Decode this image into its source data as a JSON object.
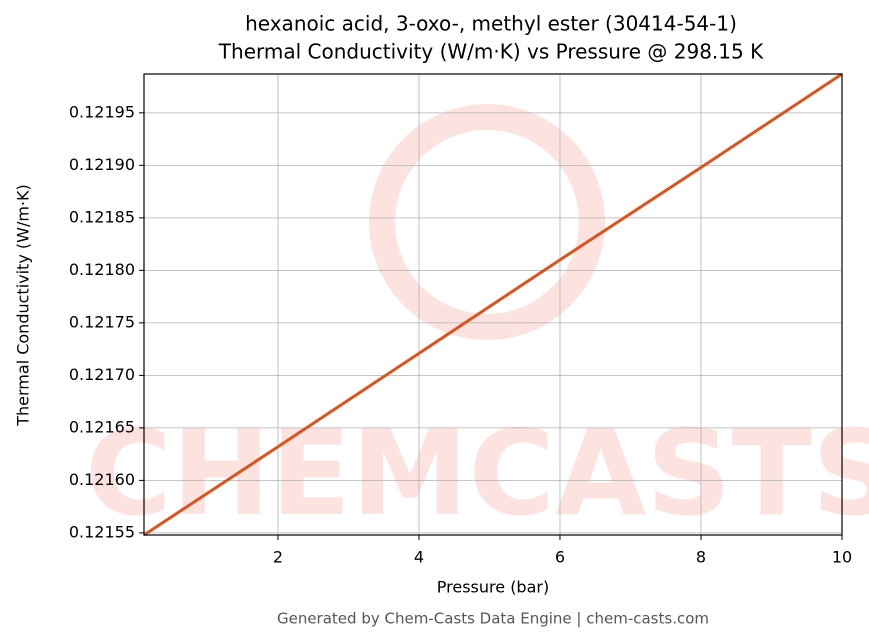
{
  "chart_data": {
    "type": "line",
    "title": "hexanoic acid, 3-oxo-, methyl ester (30414-54-1)",
    "subtitle": "Thermal Conductivity (W/m·K) vs Pressure @ 298.15 K",
    "x_label": "Pressure (bar)",
    "y_label": "Thermal Conductivity (W/m·K)",
    "footer": "Generated by Chem-Casts Data Engine | chem-casts.com",
    "watermark": "CHEMCASTS",
    "x": [
      0.1,
      2,
      4,
      6,
      8,
      10
    ],
    "series": [
      {
        "name": "Thermal Conductivity",
        "color": "#d9541e",
        "values": [
          0.121548,
          0.121632,
          0.121721,
          0.12181,
          0.121898,
          0.121987
        ]
      }
    ],
    "xlim": [
      0.1,
      10
    ],
    "xticks": [
      2,
      4,
      6,
      8,
      10
    ],
    "ylim": [
      0.121548,
      0.121987
    ],
    "yticks": [
      0.12155,
      {
        "value": 0.1216,
        "label": "0.12160"
      },
      0.12165,
      {
        "value": 0.1217,
        "label": "0.12170"
      },
      0.12175,
      {
        "value": 0.1218,
        "label": "0.12180"
      },
      0.12185,
      {
        "value": 0.1219,
        "label": "0.12190"
      },
      0.12195
    ],
    "grid": true
  }
}
